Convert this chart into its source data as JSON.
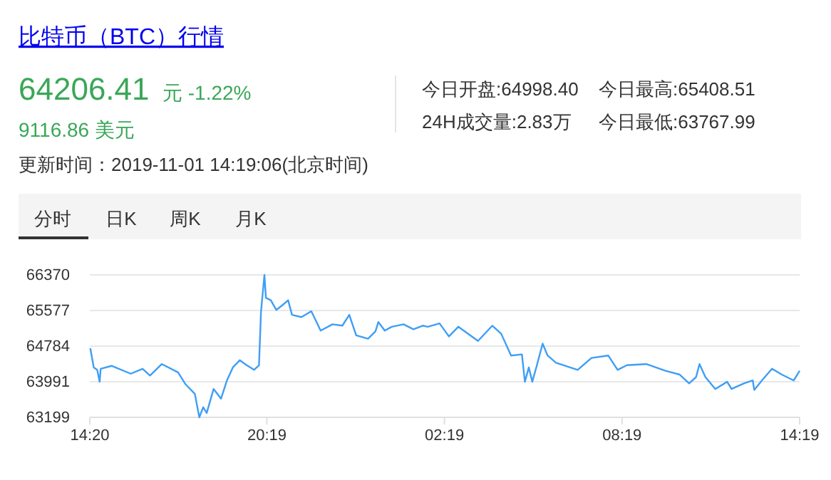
{
  "chart_data": {
    "type": "line",
    "title": "比特币（BTC）行情",
    "annotations": [
      "64206.41",
      "元 -1.22%",
      "9116.86 美元",
      "今日开盘:64998.40",
      "今日最高:65408.51",
      "24H成交量:2.83万",
      "今日最低:63767.99",
      "更新时间：2019-11-01 14:19:06(北京时间)",
      "分时",
      "日K",
      "周K",
      "月K"
    ],
    "x": [
      "2019-10-31T14:21",
      "2019-10-31T14:28",
      "2019-10-31T14:35",
      "2019-10-31T14:40",
      "2019-10-31T14:42",
      "2019-10-31T15:04",
      "2019-10-31T15:43",
      "2019-10-31T16:07",
      "2019-10-31T16:22",
      "2019-10-31T16:46",
      "2019-10-31T17:19",
      "2019-10-31T17:34",
      "2019-10-31T17:53",
      "2019-10-31T18:02",
      "2019-10-31T18:10",
      "2019-10-31T18:17",
      "2019-10-31T18:31",
      "2019-10-31T18:46",
      "2019-10-31T18:58",
      "2019-10-31T19:10",
      "2019-10-31T19:24",
      "2019-10-31T19:38",
      "2019-10-31T19:53",
      "2019-10-31T20:03",
      "2019-10-31T20:07",
      "2019-10-31T20:14",
      "2019-10-31T20:17",
      "2019-10-31T20:27",
      "2019-10-31T20:38",
      "2019-10-31T20:51",
      "2019-10-31T21:02",
      "2019-10-31T21:10",
      "2019-10-31T21:29",
      "2019-10-31T21:49",
      "2019-10-31T22:08",
      "2019-10-31T22:32",
      "2019-10-31T22:52",
      "2019-10-31T23:06",
      "2019-10-31T23:20",
      "2019-10-31T23:44",
      "2019-10-31T23:59",
      "2019-11-01T00:05",
      "2019-11-01T00:18",
      "2019-11-01T00:32",
      "2019-11-01T00:56",
      "2019-11-01T01:16",
      "2019-11-01T01:35",
      "2019-11-01T01:45",
      "2019-11-01T02:09",
      "2019-11-01T02:28",
      "2019-11-01T02:47",
      "2019-11-01T03:27",
      "2019-11-01T03:56",
      "2019-11-01T04:14",
      "2019-11-01T04:34",
      "2019-11-01T04:56",
      "2019-11-01T05:02",
      "2019-11-01T05:10",
      "2019-11-01T05:17",
      "2019-11-01T05:26",
      "2019-11-01T05:38",
      "2019-11-01T05:48",
      "2019-11-01T06:05",
      "2019-11-01T06:49",
      "2019-11-01T07:17",
      "2019-11-01T07:51",
      "2019-11-01T08:10",
      "2019-11-01T08:29",
      "2019-11-01T09:08",
      "2019-11-01T09:47",
      "2019-11-01T10:16",
      "2019-11-01T10:35",
      "2019-11-01T10:49",
      "2019-11-01T10:56",
      "2019-11-01T11:08",
      "2019-11-01T11:28",
      "2019-11-01T11:52",
      "2019-11-01T12:01",
      "2019-11-01T12:26",
      "2019-11-01T12:44",
      "2019-11-01T12:47",
      "2019-11-01T13:04",
      "2019-11-01T13:23",
      "2019-11-01T13:43",
      "2019-11-01T14:07",
      "2019-11-01T14:19"
    ],
    "series": [
      {
        "color": "#3f9ef5",
        "values": [
          64738,
          64310,
          64256,
          63990,
          64280,
          64345,
          64170,
          64280,
          64130,
          64385,
          64200,
          63936,
          63720,
          63199,
          63425,
          63295,
          63830,
          63615,
          64020,
          64310,
          64470,
          64360,
          64256,
          64360,
          65540,
          66370,
          65860,
          65805,
          65590,
          65700,
          65805,
          65480,
          65430,
          65560,
          65130,
          65270,
          65240,
          65480,
          65025,
          64950,
          65110,
          65320,
          65130,
          65215,
          65270,
          65160,
          65240,
          65215,
          65290,
          65000,
          65215,
          64900,
          65240,
          65060,
          64575,
          64600,
          63990,
          64310,
          63990,
          64345,
          64840,
          64575,
          64415,
          64256,
          64520,
          64575,
          64256,
          64360,
          64385,
          64235,
          64150,
          63955,
          64095,
          64385,
          64095,
          63830,
          63990,
          63830,
          63955,
          64020,
          63810,
          64040,
          64280,
          64150,
          64020,
          64235
        ]
      }
    ],
    "xlim": [
      "2019-10-31T14:20",
      "2019-11-01T14:19"
    ],
    "xticks": [
      {
        "value": "2019-10-31T14:20",
        "label": "14:20"
      },
      {
        "value": "2019-10-31T20:19",
        "label": "20:19"
      },
      {
        "value": "2019-11-01T02:19",
        "label": "02:19"
      },
      {
        "value": "2019-11-01T08:19",
        "label": "08:19"
      },
      {
        "value": "2019-11-01T14:19",
        "label": "14:19"
      }
    ],
    "ylim": [
      63199,
      66370
    ],
    "yticks": [
      63199,
      63991,
      64784,
      65577,
      66370
    ],
    "grid": "y",
    "line_style": "solid"
  }
}
